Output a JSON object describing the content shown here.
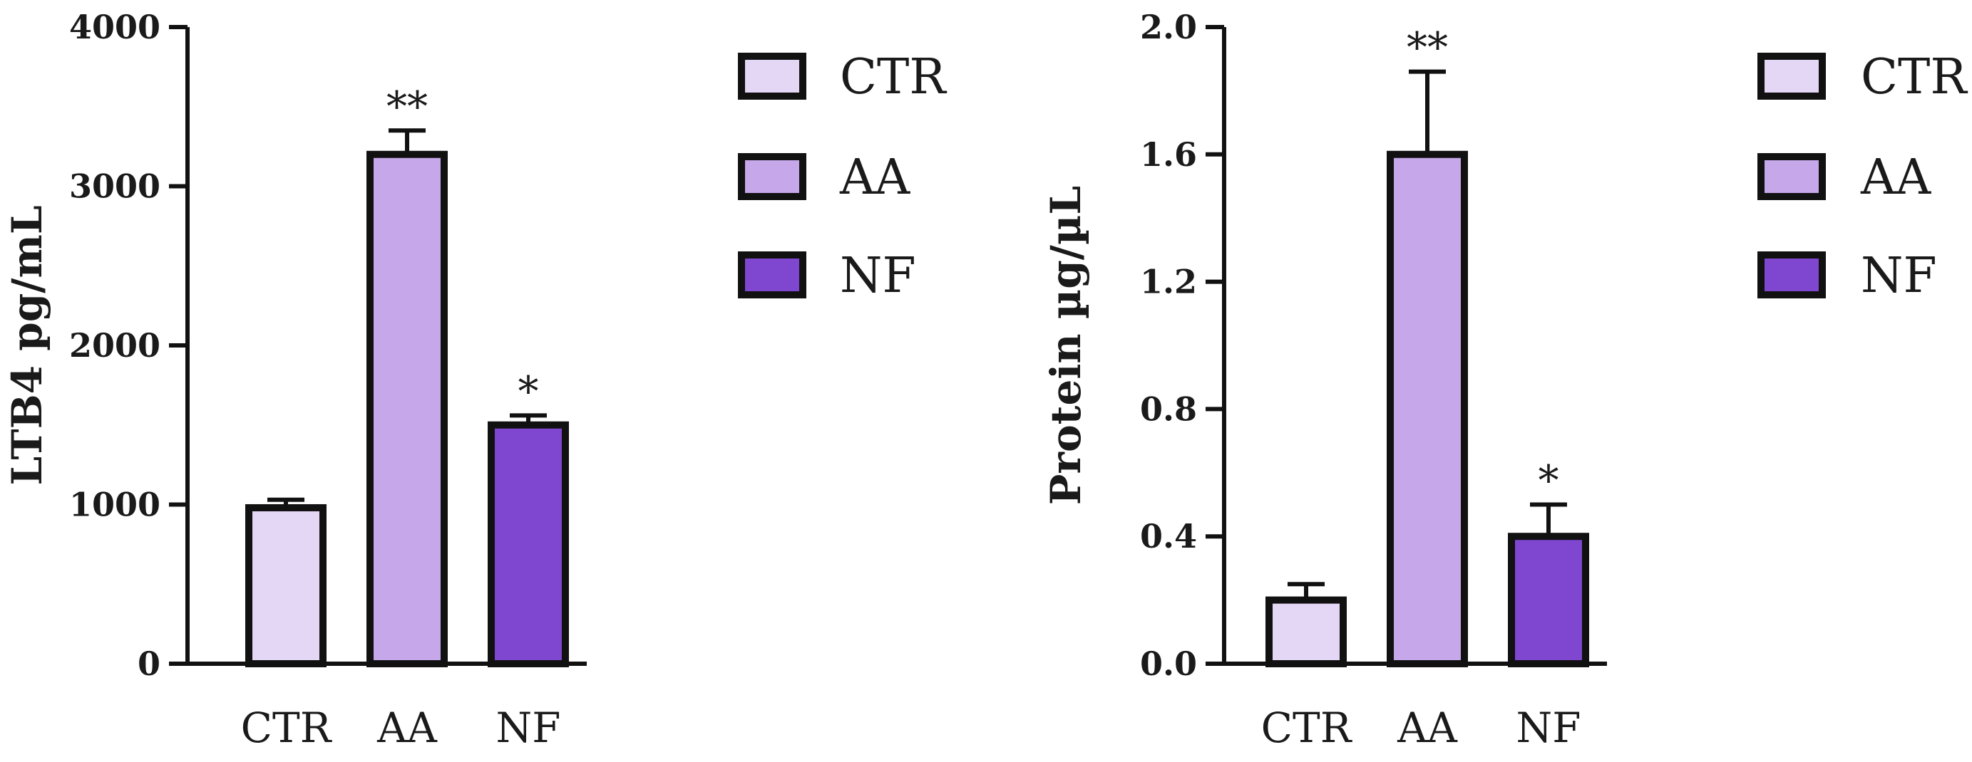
{
  "colors": {
    "CTR": "#e4d6f5",
    "AA": "#c5a7ea",
    "NF": "#7f46cf",
    "stroke": "#111111"
  },
  "chart_data": [
    {
      "type": "bar",
      "categories": [
        "CTR",
        "AA",
        "NF"
      ],
      "values": [
        980,
        3200,
        1500
      ],
      "errors": [
        50,
        150,
        60
      ],
      "significance": [
        "",
        "**",
        "*"
      ],
      "ylabel": "LTB4 pg/mL",
      "ylim": [
        0,
        4000
      ],
      "yticks": [
        "0",
        "1000",
        "2000",
        "3000",
        "4000"
      ],
      "legend": [
        "CTR",
        "AA",
        "NF"
      ],
      "legend_position": "right",
      "grid": false
    },
    {
      "type": "bar",
      "categories": [
        "CTR",
        "AA",
        "NF"
      ],
      "values": [
        0.2,
        1.6,
        0.4
      ],
      "errors": [
        0.05,
        0.26,
        0.1
      ],
      "significance": [
        "",
        "**",
        "*"
      ],
      "ylabel": "Protein µg/µL",
      "ylim": [
        0,
        2.0
      ],
      "yticks": [
        "0.0",
        "0.4",
        "0.8",
        "1.2",
        "1.6",
        "2.0"
      ],
      "legend": [
        "CTR",
        "AA",
        "NF"
      ],
      "legend_position": "right",
      "grid": false
    }
  ]
}
